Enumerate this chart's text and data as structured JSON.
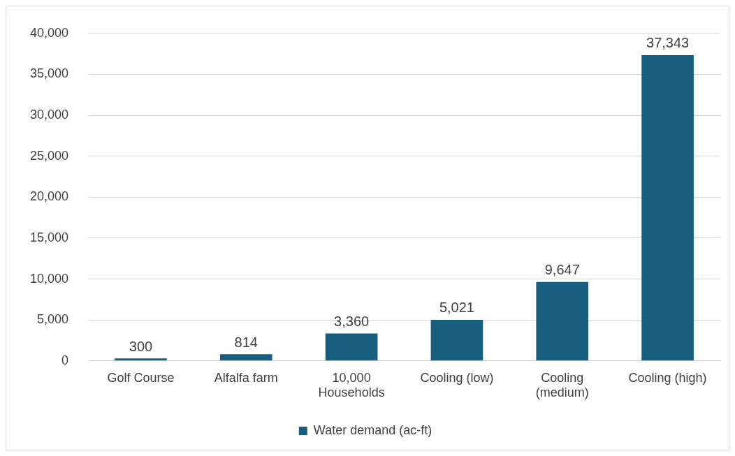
{
  "chart_data": {
    "type": "bar",
    "categories": [
      "Golf Course",
      "Alfalfa farm",
      "10,000 Households",
      "Cooling (low)",
      "Cooling (medium)",
      "Cooling (high)"
    ],
    "series": [
      {
        "name": "Water demand (ac-ft)",
        "color": "#175e7f",
        "values": [
          300,
          814,
          3360,
          5021,
          9647,
          37343
        ],
        "value_labels": [
          "300",
          "814",
          "3,360",
          "5,021",
          "9,647",
          "37,343"
        ]
      }
    ],
    "ylim": [
      0,
      40000
    ],
    "yticks": [
      {
        "value": 0,
        "label": "0"
      },
      {
        "value": 5000,
        "label": "5,000"
      },
      {
        "value": 10000,
        "label": "10,000"
      },
      {
        "value": 15000,
        "label": "15,000"
      },
      {
        "value": 20000,
        "label": "20,000"
      },
      {
        "value": 25000,
        "label": "25,000"
      },
      {
        "value": 30000,
        "label": "30,000"
      },
      {
        "value": 35000,
        "label": "35,000"
      },
      {
        "value": 40000,
        "label": "40,000"
      }
    ],
    "grid": "y",
    "legend": "bottom"
  }
}
